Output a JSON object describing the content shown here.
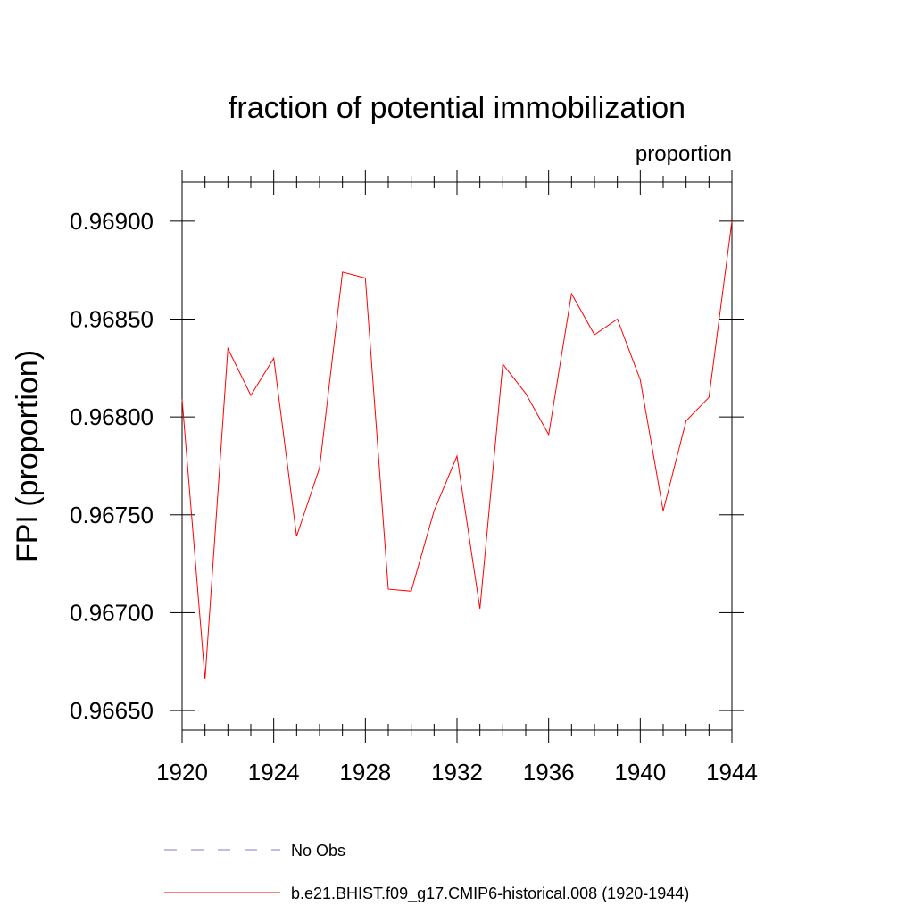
{
  "chart_data": {
    "type": "line",
    "title": "fraction of potential immobilization",
    "units": "proportion",
    "xlabel": "",
    "ylabel": "FPI  (proportion)",
    "xlim": [
      1920,
      1944
    ],
    "ylim": [
      0.9664,
      0.9692
    ],
    "x_ticks": [
      1920,
      1924,
      1928,
      1932,
      1936,
      1940,
      1944
    ],
    "x_tick_labels": [
      "1920",
      "1924",
      "1928",
      "1932",
      "1936",
      "1940",
      "1944"
    ],
    "y_ticks": [
      0.9665,
      0.967,
      0.9675,
      0.968,
      0.9685,
      0.969
    ],
    "y_tick_labels": [
      "0.96650",
      "0.96700",
      "0.96750",
      "0.96800",
      "0.96850",
      "0.96900"
    ],
    "grid": false,
    "legend_position": "bottom",
    "x": [
      1920,
      1921,
      1922,
      1923,
      1924,
      1925,
      1926,
      1927,
      1928,
      1929,
      1930,
      1931,
      1932,
      1933,
      1934,
      1935,
      1936,
      1937,
      1938,
      1939,
      1940,
      1941,
      1942,
      1943,
      1944
    ],
    "series": [
      {
        "name": "b.e21.BHIST.f09_g17.CMIP6-historical.008 (1920-1944)",
        "color": "#ff0000",
        "style": "solid",
        "values": [
          0.96809,
          0.96666,
          0.96835,
          0.96811,
          0.9683,
          0.96739,
          0.96774,
          0.96874,
          0.96871,
          0.96712,
          0.96711,
          0.96752,
          0.9678,
          0.96702,
          0.96827,
          0.96812,
          0.96791,
          0.96863,
          0.96842,
          0.9685,
          0.96819,
          0.96752,
          0.96798,
          0.9681,
          0.969
        ]
      }
    ],
    "legend": [
      {
        "label": "No Obs",
        "color": "#7f7fcc",
        "style": "dashed"
      },
      {
        "label": "b.e21.BHIST.f09_g17.CMIP6-historical.008 (1920-1944)",
        "color": "#ff0000",
        "style": "solid"
      }
    ]
  }
}
